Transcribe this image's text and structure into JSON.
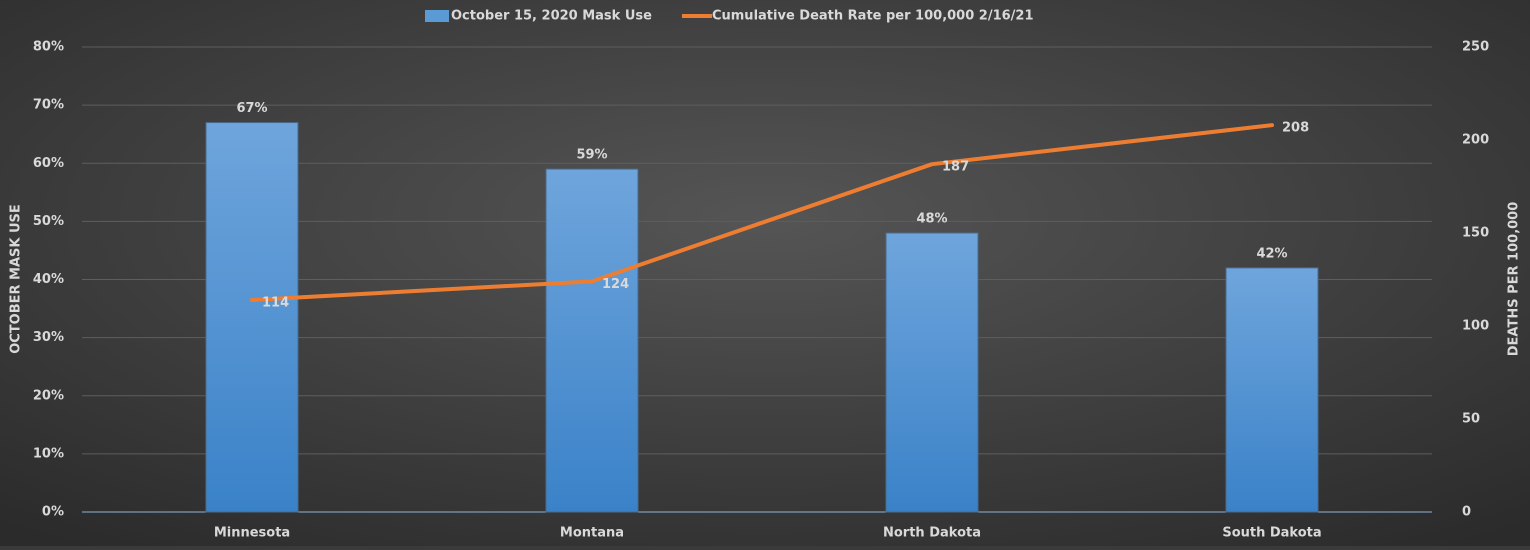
{
  "chart_data": {
    "type": "bar_line",
    "categories": [
      "Minnesota",
      "Montana",
      "North Dakota",
      "South Dakota"
    ],
    "series": [
      {
        "name": "October 15, 2020 Mask Use",
        "type": "bar",
        "color": "#5b9bd5",
        "values": [
          67,
          59,
          48,
          42
        ],
        "value_labels": [
          "67%",
          "59%",
          "48%",
          "42%"
        ]
      },
      {
        "name": "Cumulative Death Rate per 100,000 2/16/21",
        "type": "line",
        "axis": "y2",
        "color": "#ed7d31",
        "values": [
          114,
          124,
          187,
          208
        ]
      }
    ],
    "ylabel": "OCTOBER MASK USE",
    "y2label": "DEATHS PER 100,000",
    "ylim": [
      0,
      80
    ],
    "yticks": [
      {
        "value": 0,
        "label": "0%"
      },
      {
        "value": 10,
        "label": "10%"
      },
      {
        "value": 20,
        "label": "20%"
      },
      {
        "value": 30,
        "label": "30%"
      },
      {
        "value": 40,
        "label": "40%"
      },
      {
        "value": 50,
        "label": "50%"
      },
      {
        "value": 60,
        "label": "60%"
      },
      {
        "value": 70,
        "label": "70%"
      },
      {
        "value": 80,
        "label": "80%"
      }
    ],
    "y2lim": [
      0,
      250
    ],
    "y2ticks": [
      0,
      50,
      100,
      150,
      200,
      250
    ],
    "grid": true,
    "legend": "top"
  }
}
